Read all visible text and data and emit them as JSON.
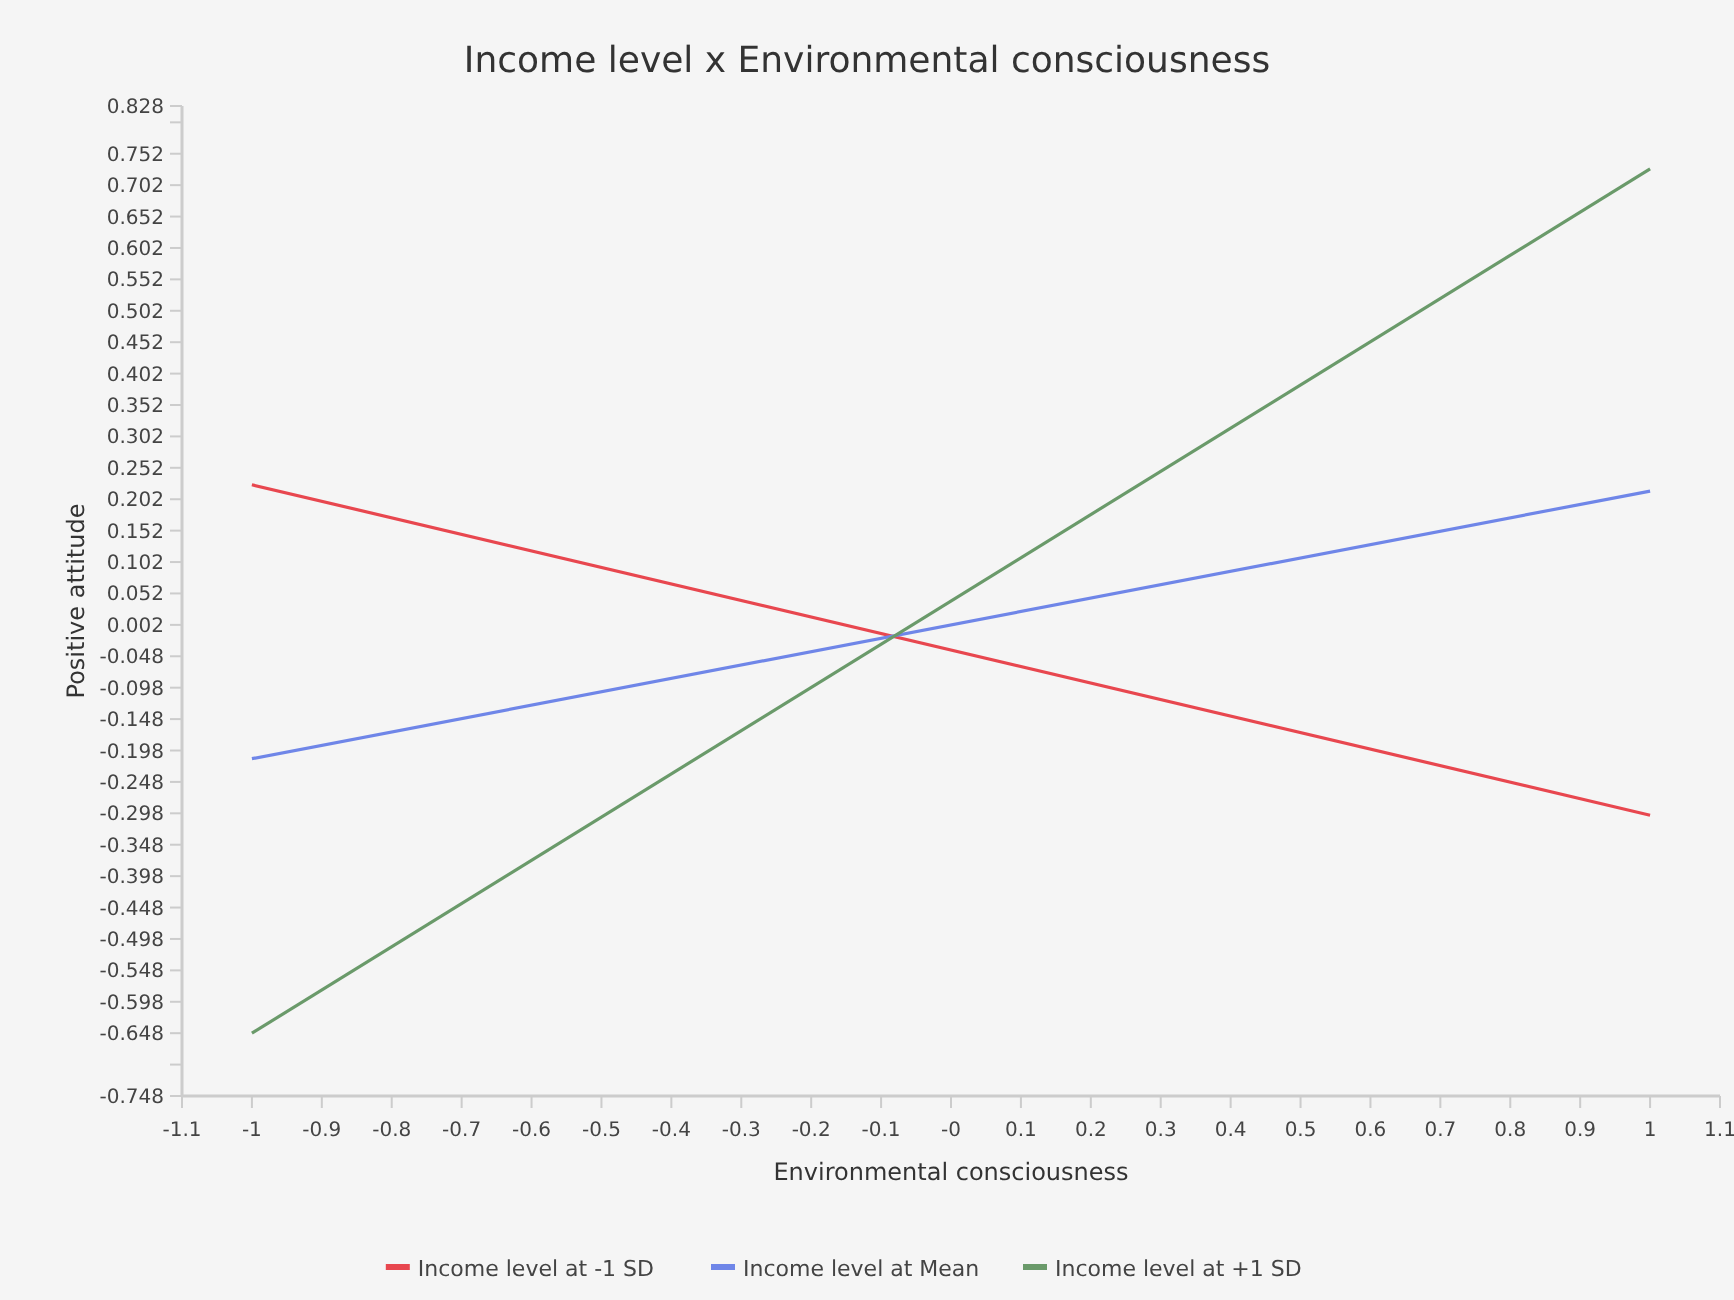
{
  "chart_data": {
    "type": "line",
    "title": "Income level x Environmental consciousness",
    "xlabel": "Environmental consciousness",
    "ylabel": "Positive attitude",
    "x": [
      -1,
      1
    ],
    "series": [
      {
        "name": "Income level at -1 SD",
        "color": "#e8474f",
        "values": [
          0.225,
          -0.301
        ]
      },
      {
        "name": "Income level at Mean",
        "color": "#6f86e8",
        "values": [
          -0.211,
          0.215
        ]
      },
      {
        "name": "Income level at +1 SD",
        "color": "#6a9a6a",
        "values": [
          -0.648,
          0.728
        ]
      }
    ],
    "xlim": [
      -1.1,
      1.1
    ],
    "xticks": [
      -1.1,
      -1,
      -0.9,
      -0.8,
      -0.7,
      -0.6,
      -0.5,
      -0.4,
      -0.3,
      -0.2,
      -0.1,
      {
        "value": 0,
        "label": "-0"
      },
      0.1,
      0.2,
      0.3,
      0.4,
      0.5,
      0.6,
      0.7,
      0.8,
      0.9,
      1,
      1.1
    ],
    "ylim": [
      -0.748,
      0.828
    ],
    "yticks": [
      -0.748,
      {
        "value": -0.698,
        "label": null
      },
      -0.648,
      -0.598,
      -0.548,
      -0.498,
      -0.448,
      -0.398,
      -0.348,
      -0.298,
      -0.248,
      -0.198,
      -0.148,
      -0.098,
      -0.048,
      0.002,
      0.052,
      0.102,
      0.152,
      0.202,
      0.252,
      0.302,
      0.352,
      0.402,
      0.452,
      0.502,
      0.552,
      0.602,
      0.652,
      0.702,
      0.752,
      {
        "value": 0.802,
        "label": null
      },
      0.828
    ],
    "grid": false,
    "legend": "bottom",
    "marker": "none",
    "line_style": "solid"
  }
}
